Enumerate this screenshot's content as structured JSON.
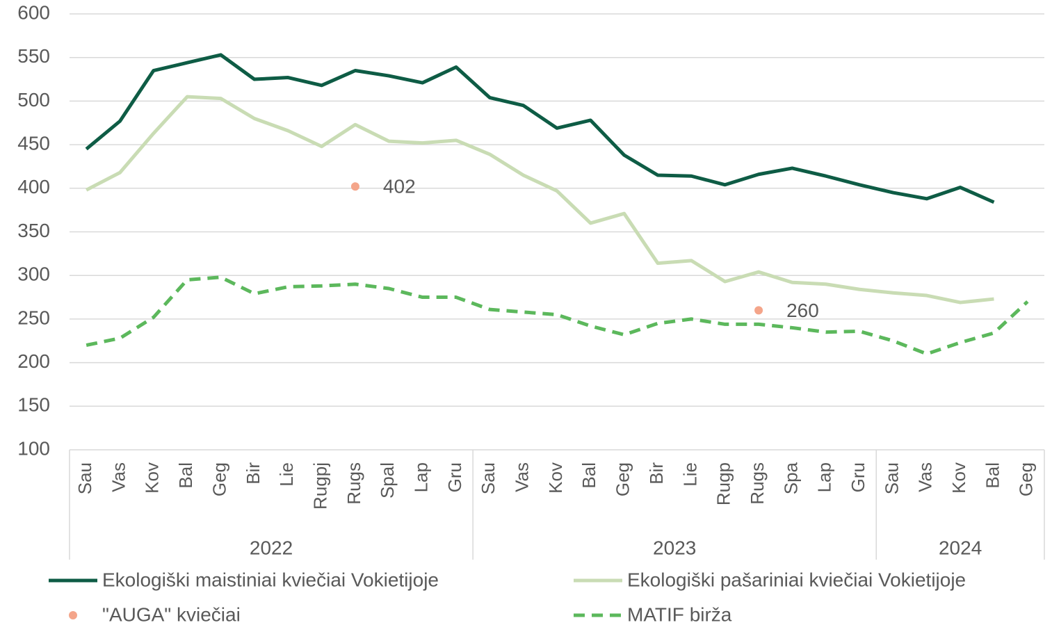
{
  "chart_data": {
    "type": "line",
    "categories": [
      "Sau",
      "Vas",
      "Kov",
      "Bal",
      "Geg",
      "Bir",
      "Lie",
      "Rugpj",
      "Rugs",
      "Spal",
      "Lap",
      "Gru",
      "Sau",
      "Vas",
      "Kov",
      "Bal",
      "Geg",
      "Bir",
      "Lie",
      "Rugp",
      "Rugs",
      "Spa",
      "Lap",
      "Gru",
      "Sau",
      "Vas",
      "Kov",
      "Bal",
      "Geg"
    ],
    "category_groups": [
      {
        "label": "2022",
        "size": 12
      },
      {
        "label": "2023",
        "size": 12
      },
      {
        "label": "2024",
        "size": 5
      }
    ],
    "series": [
      {
        "name": "Ekologiški maistiniai kviečiai Vokietijoje",
        "color": "#0e5c45",
        "style": "solid",
        "values": [
          445,
          477,
          535,
          544,
          553,
          525,
          527,
          518,
          535,
          529,
          521,
          539,
          504,
          495,
          469,
          478,
          438,
          415,
          414,
          404,
          416,
          423,
          414,
          404,
          395,
          388,
          401,
          384,
          null
        ]
      },
      {
        "name": "Ekologiški pašariniai kviečiai Vokietijoje",
        "color": "#c9dcb4",
        "style": "solid",
        "values": [
          398,
          418,
          463,
          505,
          503,
          480,
          466,
          448,
          473,
          454,
          452,
          455,
          439,
          415,
          397,
          360,
          371,
          314,
          317,
          293,
          304,
          292,
          290,
          284,
          280,
          277,
          269,
          273,
          null
        ]
      },
      {
        "name": "\"AUGA\" kviečiai",
        "color": "#f4a58a",
        "style": "point",
        "values": [
          null,
          null,
          null,
          null,
          null,
          null,
          null,
          null,
          402,
          null,
          null,
          null,
          null,
          null,
          null,
          null,
          null,
          null,
          null,
          null,
          260,
          null,
          null,
          null,
          null,
          null,
          null,
          null,
          null
        ]
      },
      {
        "name": "MATIF birža",
        "color": "#5cb85c",
        "style": "dashed",
        "values": [
          220,
          228,
          252,
          295,
          298,
          279,
          287,
          288,
          290,
          285,
          275,
          275,
          261,
          258,
          255,
          242,
          232,
          245,
          250,
          244,
          244,
          240,
          235,
          236,
          225,
          210,
          223,
          234,
          270
        ]
      }
    ],
    "ylim": [
      100,
      600
    ],
    "yticks": [
      100,
      150,
      200,
      250,
      300,
      350,
      400,
      450,
      500,
      550,
      600
    ],
    "grid": true
  }
}
